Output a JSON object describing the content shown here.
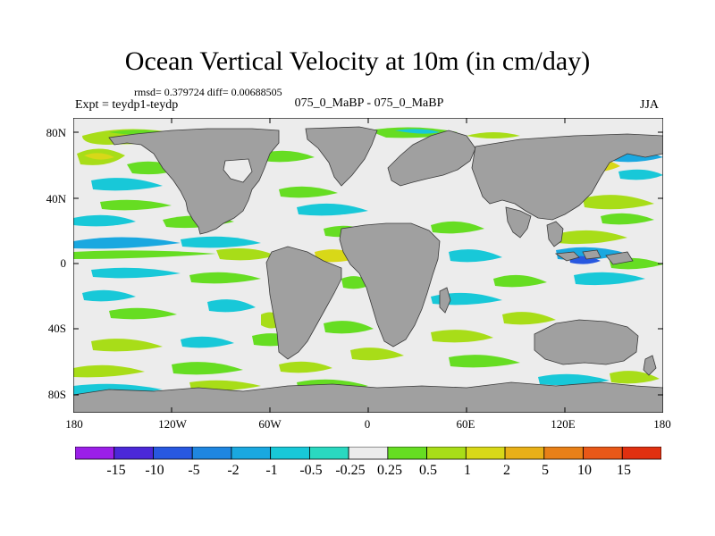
{
  "title": "Ocean Vertical Velocity at 10m (in cm/day)",
  "stats": "rmsd= 0.379724 diff= 0.00688505",
  "expt": "Expt = teydp1-teydp",
  "subtitle": "075_0_MaBP - 075_0_MaBP",
  "season": "JJA",
  "y_ticks": [
    "80N",
    "40N",
    "0",
    "40S",
    "80S"
  ],
  "x_ticks": [
    "180",
    "120W",
    "60W",
    "0",
    "60E",
    "120E",
    "180"
  ],
  "colorbar": {
    "labels": [
      "-15",
      "-10",
      "-5",
      "-2",
      "-1",
      "-0.5",
      "-0.25",
      "0.25",
      "0.5",
      "1",
      "2",
      "5",
      "10",
      "15"
    ],
    "colors": [
      "#9b1fe8",
      "#4b28d8",
      "#2858e0",
      "#1f86e0",
      "#1aa8e0",
      "#18c8d8",
      "#2ad8c0",
      "#ececec",
      "#66dd22",
      "#a8dd18",
      "#d8d818",
      "#e8b018",
      "#e88018",
      "#e85818",
      "#e03010"
    ]
  },
  "colors": {
    "land": "#a0a0a0",
    "ocean_background": "#ececec",
    "frame": "#000000"
  }
}
